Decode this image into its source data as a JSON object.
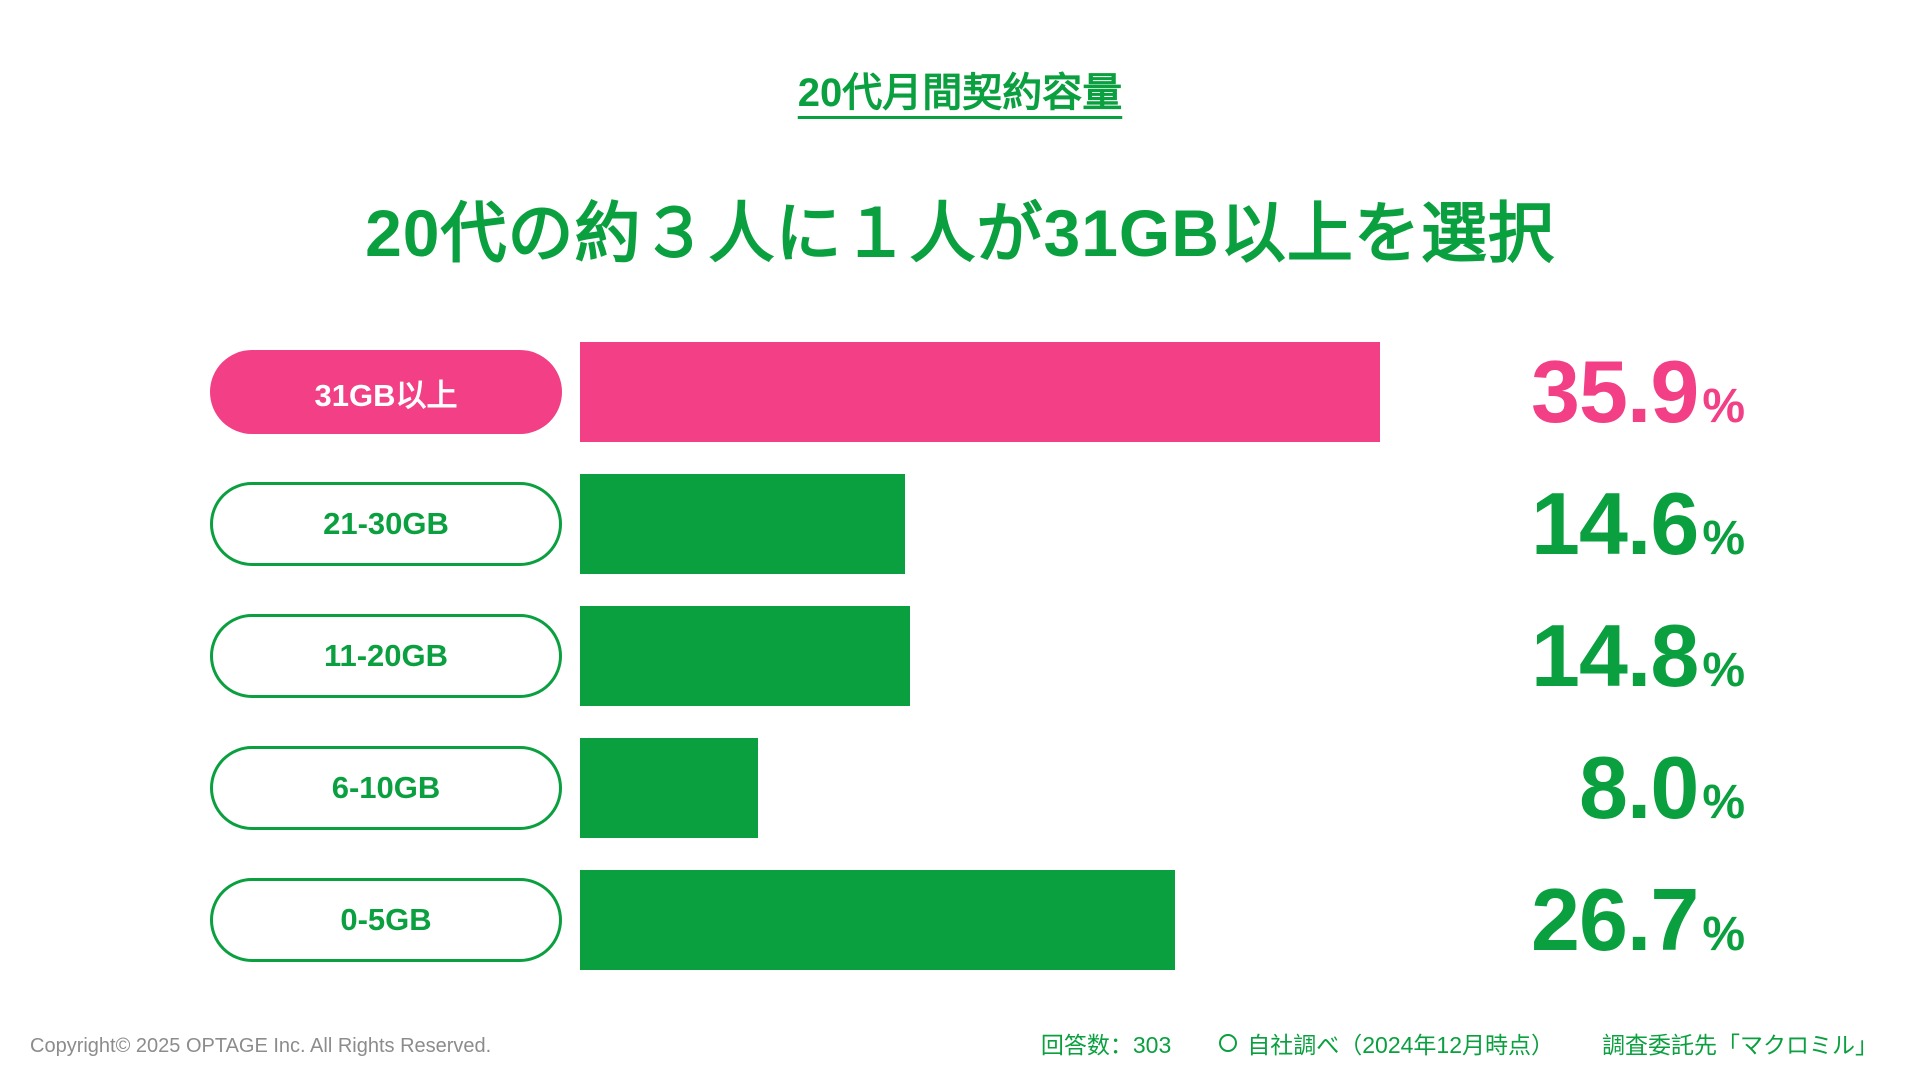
{
  "colors": {
    "green": "#0a9f3f",
    "pink": "#f23f85",
    "copyright_gray": "#8c8c8c"
  },
  "header": {
    "badge": "20代月間契約容量"
  },
  "chart_data": {
    "type": "bar",
    "orientation": "horizontal",
    "title": "20代の約３人に１人が31GB以上を選択",
    "categories": [
      "31GB以上",
      "21-30GB",
      "11-20GB",
      "6-10GB",
      "0-5GB"
    ],
    "values": [
      35.9,
      14.6,
      14.8,
      8.0,
      26.7
    ],
    "value_suffix": "%",
    "xlim": [
      0,
      40
    ],
    "grid": false,
    "legend": "none",
    "rows": [
      {
        "category": "31GB以上",
        "value": 35.9,
        "display": "35.9",
        "color": "pink"
      },
      {
        "category": "21-30GB",
        "value": 14.6,
        "display": "14.6",
        "color": "green"
      },
      {
        "category": "11-20GB",
        "value": 14.8,
        "display": "14.8",
        "color": "green"
      },
      {
        "category": "6-10GB",
        "value": 8.0,
        "display": "8.0",
        "color": "green"
      },
      {
        "category": "0-5GB",
        "value": 26.7,
        "display": "26.7",
        "color": "green"
      }
    ]
  },
  "footer": {
    "copyright": "Copyright© 2025 OPTAGE Inc. All Rights Reserved.",
    "respondents": "回答数：303",
    "survey": "自社調べ（2024年12月時点）",
    "agency": "調査委託先「マクロミル」"
  }
}
